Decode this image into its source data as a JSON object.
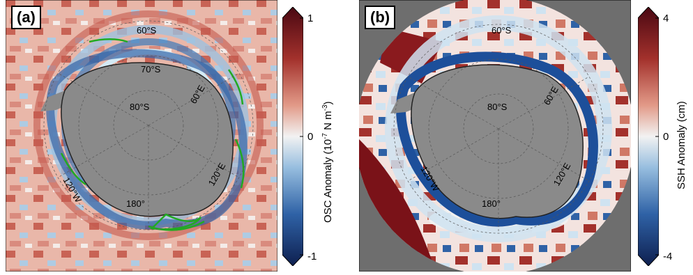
{
  "panels": [
    {
      "label": "(a)",
      "lat_labels": [
        "60°S",
        "70°S",
        "80°S"
      ],
      "lon_labels": [
        "120°W",
        "60°E",
        "120°E",
        "180°"
      ],
      "colorbar": {
        "max_label": "1",
        "mid_label": "0",
        "min_label": "-1",
        "title_prefix": "OSC Anomaly (10",
        "title_exp1": "-7",
        "title_mid": " N m",
        "title_exp2": "-3",
        "title_suffix": ")",
        "min": -1,
        "max": 1
      },
      "contour_color": "#22aa22"
    },
    {
      "label": "(b)",
      "lat_labels": [
        "60°S",
        "80°S"
      ],
      "lon_labels": [
        "120°W",
        "60°E",
        "120°E",
        "180°"
      ],
      "colorbar": {
        "max_label": "4",
        "mid_label": "0",
        "min_label": "-4",
        "title": "SSH Anomaly (cm)",
        "min": -4,
        "max": 4
      },
      "mask_color": "#6e6e6e"
    }
  ],
  "colors": {
    "pos_dark": "#5a0a14",
    "pos": "#c0423a",
    "neutral": "#f2f2f2",
    "neg": "#3d79b9",
    "neg_dark": "#0e1f4f",
    "land": "#8a8a8a"
  }
}
